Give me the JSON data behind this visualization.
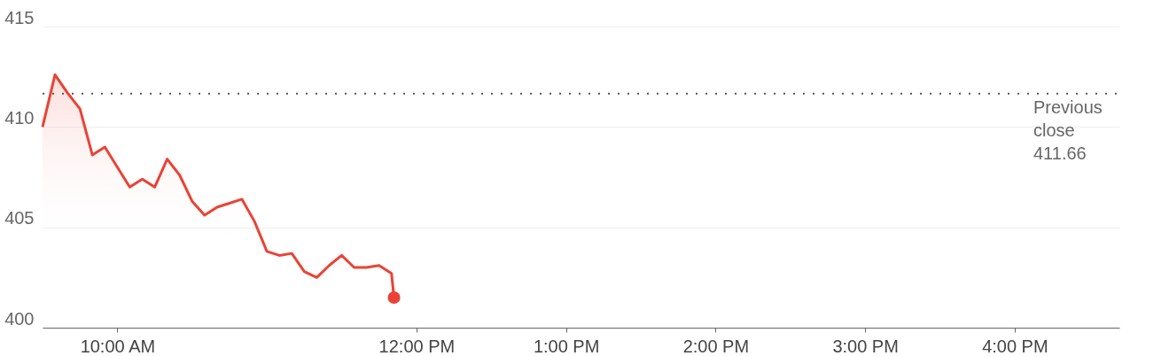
{
  "chart_data": {
    "type": "area",
    "x": [
      9.5,
      9.5833,
      9.6667,
      9.75,
      9.8333,
      9.9167,
      10.0,
      10.0833,
      10.1667,
      10.25,
      10.3333,
      10.4167,
      10.5,
      10.5833,
      10.6667,
      10.75,
      10.8333,
      10.9167,
      11.0,
      11.0833,
      11.1667,
      11.25,
      11.3333,
      11.4167,
      11.5,
      11.5833,
      11.6667,
      11.75,
      11.8333,
      11.85
    ],
    "series": [
      {
        "color": "#ea4335",
        "values": [
          410.0,
          412.6,
          411.7,
          410.9,
          408.6,
          409.0,
          408.0,
          407.0,
          407.4,
          407.0,
          408.4,
          407.6,
          406.3,
          405.6,
          406.0,
          406.2,
          406.4,
          405.3,
          403.8,
          403.6,
          403.7,
          402.8,
          402.5,
          403.1,
          403.6,
          403.0,
          403.0,
          403.1,
          402.7,
          401.5
        ]
      },
      {
        "type": "scatter",
        "color": "#ea4335",
        "marker": "circle",
        "x": [
          11.85
        ],
        "values": [
          401.5
        ]
      }
    ],
    "xlim": [
      9.5,
      16.7
    ],
    "xticks": [
      {
        "value": 10,
        "label": "10:00 AM"
      },
      {
        "value": 12,
        "label": "12:00 PM"
      },
      {
        "value": 13,
        "label": "1:00 PM"
      },
      {
        "value": 14,
        "label": "2:00 PM"
      },
      {
        "value": 15,
        "label": "3:00 PM"
      },
      {
        "value": 16,
        "label": "4:00 PM"
      }
    ],
    "ylim": [
      400,
      415
    ],
    "yticks": [
      400,
      405,
      410,
      415
    ],
    "grid": "y",
    "ref_lines": [
      {
        "axis": "y",
        "value": 411.66,
        "label": "Previous close 411.66",
        "line_style": "dotted",
        "color": "#555555"
      }
    ]
  }
}
